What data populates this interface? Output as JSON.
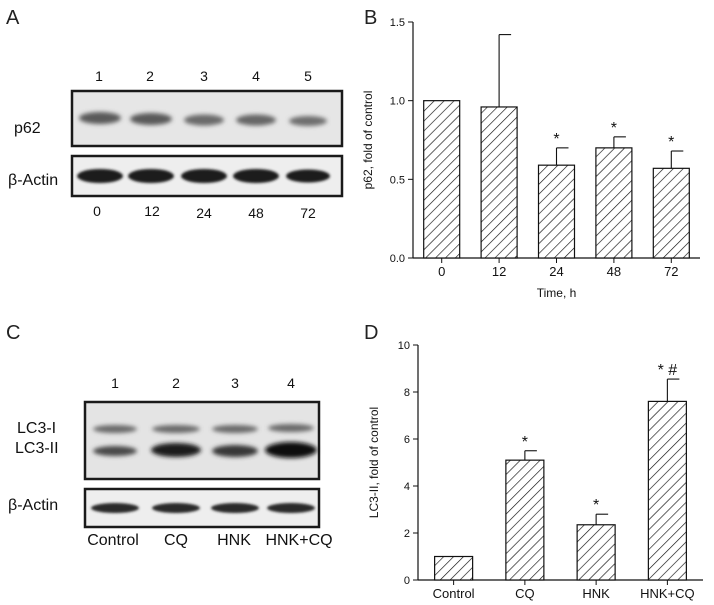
{
  "panels": {
    "a": {
      "letter": "A",
      "lanes": [
        "1",
        "2",
        "3",
        "4",
        "5"
      ],
      "rows": [
        "p62",
        "β-Actin"
      ],
      "bottom_labels": [
        "0",
        "12",
        "24",
        "48",
        "72"
      ]
    },
    "c": {
      "letter": "C",
      "lanes": [
        "1",
        "2",
        "3",
        "4"
      ],
      "rows": [
        "LC3-I",
        "LC3-II",
        "β-Actin"
      ],
      "bottom_labels": [
        "Control",
        "CQ",
        "HNK",
        "HNK+CQ"
      ]
    }
  },
  "chart_data": [
    {
      "letter": "B",
      "type": "bar",
      "categories": [
        "0",
        "12",
        "24",
        "48",
        "72"
      ],
      "values": [
        1.0,
        0.96,
        0.59,
        0.7,
        0.57
      ],
      "errors": [
        0.0,
        0.46,
        0.11,
        0.07,
        0.11
      ],
      "significance": [
        "",
        "",
        "*",
        "*",
        "*"
      ],
      "xlabel": "Time, h",
      "ylabel": "p62, fold of control",
      "ylim": [
        0,
        1.5
      ],
      "yticks": [
        0.0,
        0.5,
        1.0,
        1.5
      ],
      "ytick_labels": [
        "0.0",
        "0.5",
        "1.0",
        "1.5"
      ],
      "fill": "hatched"
    },
    {
      "letter": "D",
      "type": "bar",
      "categories": [
        "Control",
        "CQ",
        "HNK",
        "HNK+CQ"
      ],
      "values": [
        1.0,
        5.1,
        2.35,
        7.6
      ],
      "errors": [
        0.0,
        0.4,
        0.45,
        0.95
      ],
      "significance": [
        "",
        "*",
        "*",
        "* #"
      ],
      "xlabel": "",
      "ylabel": "LC3-II, fold of control",
      "ylim": [
        0,
        10
      ],
      "yticks": [
        0,
        2,
        4,
        6,
        8,
        10
      ],
      "ytick_labels": [
        "0",
        "2",
        "4",
        "6",
        "8",
        "10"
      ],
      "fill": "hatched"
    }
  ]
}
